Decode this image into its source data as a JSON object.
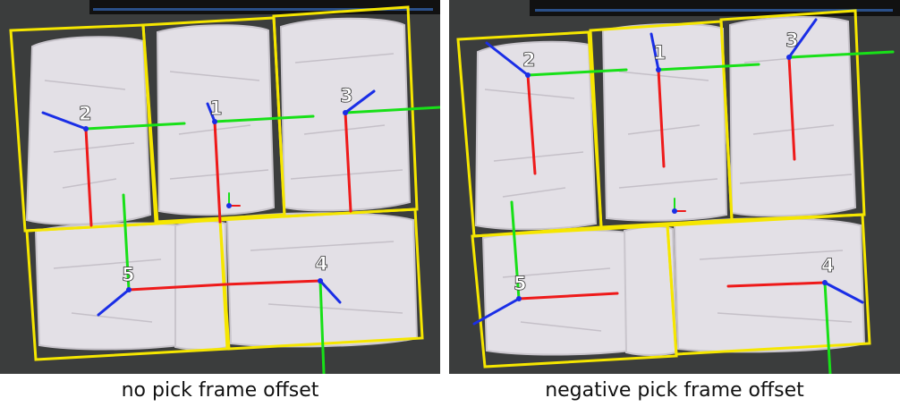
{
  "panels": [
    {
      "caption": "no pick frame offset",
      "bag_labels": [
        "1",
        "2",
        "3",
        "4",
        "5"
      ]
    },
    {
      "caption": "negative pick frame offset",
      "bag_labels": [
        "1",
        "2",
        "3",
        "4",
        "5"
      ]
    }
  ],
  "colors": {
    "bbox": "#f5e600",
    "x_axis": "#ee1a1a",
    "y_axis": "#18e018",
    "z_axis": "#1a2ee6",
    "background": "#3b3d3d",
    "bag": "#e6e3e8"
  }
}
